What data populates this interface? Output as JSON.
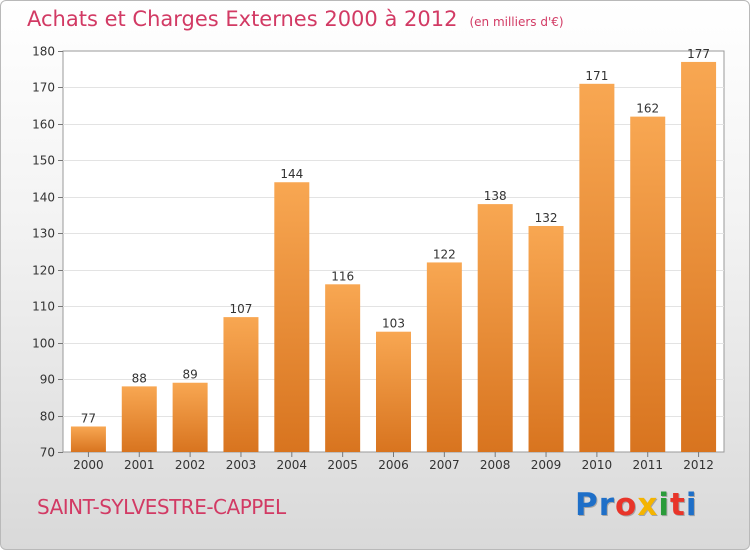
{
  "chart_data": {
    "type": "bar",
    "title": "Achats et Charges Externes 2000 à 2012",
    "subtitle": "(en milliers d'€)",
    "categories": [
      "2000",
      "2001",
      "2002",
      "2003",
      "2004",
      "2005",
      "2006",
      "2007",
      "2008",
      "2009",
      "2010",
      "2011",
      "2012"
    ],
    "values": [
      77,
      88,
      89,
      107,
      144,
      116,
      103,
      122,
      138,
      132,
      171,
      162,
      177
    ],
    "ylim": [
      70,
      180
    ],
    "yticks": [
      70,
      80,
      90,
      100,
      110,
      120,
      130,
      140,
      150,
      160,
      170,
      180
    ],
    "grid": true,
    "bar_color_top": "#f8a752",
    "bar_color_bottom": "#d8741f"
  },
  "footer": {
    "town": "SAINT-SYLVESTRE-CAPPEL",
    "brand_letters": [
      {
        "ch": "P",
        "color": "#1e6fc8"
      },
      {
        "ch": "r",
        "color": "#1e6fc8"
      },
      {
        "ch": "o",
        "color": "#e8352a"
      },
      {
        "ch": "x",
        "color": "#f4b400"
      },
      {
        "ch": "i",
        "color": "#2a9c3a"
      },
      {
        "ch": "t",
        "color": "#e8352a"
      },
      {
        "ch": "i",
        "color": "#1e6fc8"
      }
    ]
  }
}
